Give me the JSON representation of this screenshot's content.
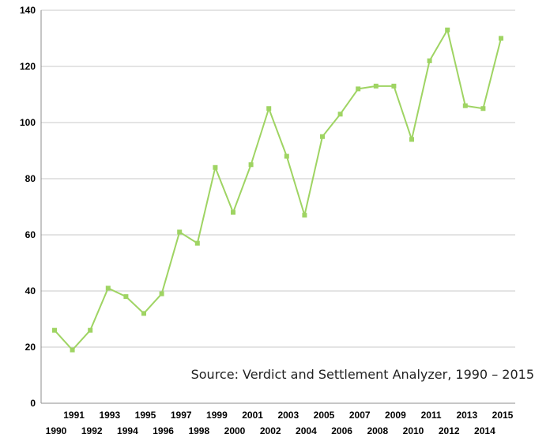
{
  "chart_data": {
    "type": "line",
    "x": [
      "1990",
      "1991",
      "1992",
      "1993",
      "1994",
      "1995",
      "1996",
      "1997",
      "1998",
      "1999",
      "2000",
      "2001",
      "2002",
      "2003",
      "2004",
      "2005",
      "2006",
      "2007",
      "2008",
      "2009",
      "2010",
      "2011",
      "2012",
      "2013",
      "2014",
      "2015"
    ],
    "series": [
      {
        "values": [
          26,
          19,
          26,
          41,
          38,
          32,
          39,
          61,
          57,
          84,
          68,
          85,
          105,
          88,
          67,
          95,
          103,
          112,
          113,
          113,
          94,
          122,
          133,
          106,
          105,
          130
        ],
        "color": "#9fd463"
      }
    ],
    "ylim": [
      0,
      140
    ],
    "yticks": [
      0,
      20,
      40,
      60,
      80,
      100,
      120,
      140
    ],
    "grid": true,
    "marker": "square",
    "annotation": "Source: Verdict and Settlement Analyzer, 1990 – 2015",
    "colors": {
      "line": "#9fd463",
      "grid": "#c8c8c8",
      "axis": "#8c8c8c",
      "text": "#000000"
    }
  }
}
